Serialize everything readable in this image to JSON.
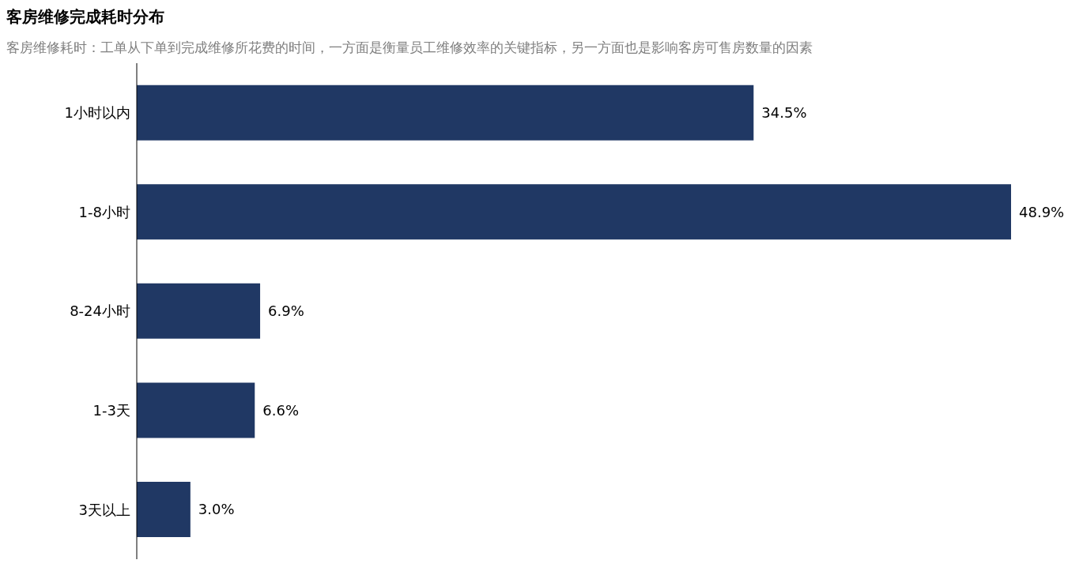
{
  "chart_data": {
    "type": "bar",
    "orientation": "horizontal",
    "title": "客房维修完成耗时分布",
    "subtitle": "客房维修耗时：工单从下单到完成维修所花费的时间，一方面是衡量员工维修效率的关键指标，另一方面也是影响客房可售房数量的因素",
    "categories": [
      "1小时以内",
      "1-8小时",
      "8-24小时",
      "1-3天",
      "3天以上"
    ],
    "values": [
      34.5,
      48.9,
      6.9,
      6.6,
      3.0
    ],
    "value_labels": [
      "34.5%",
      "48.9%",
      "6.9%",
      "6.6%",
      "3.0%"
    ],
    "color": "#203864",
    "grid": false,
    "legend": false
  }
}
